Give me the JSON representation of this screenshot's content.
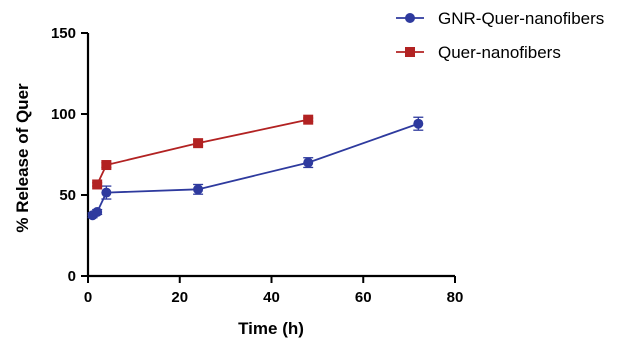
{
  "chart_data": {
    "type": "line",
    "xlabel": "Time (h)",
    "ylabel": "% Release of Quer",
    "xlim": [
      0,
      80
    ],
    "ylim": [
      0,
      150
    ],
    "x_ticks": [
      "0",
      "20",
      "40",
      "60",
      "80"
    ],
    "y_ticks": [
      "0",
      "50",
      "100",
      "150"
    ],
    "grid": false,
    "legend_position": "top-right",
    "series": [
      {
        "name": "GNR-Quer-nanofibers",
        "color": "#2e3a9e",
        "marker": "circle",
        "x": [
          1,
          2,
          4,
          24,
          48,
          72
        ],
        "y": [
          37.5,
          39.5,
          51.5,
          53.5,
          70,
          94
        ],
        "error": [
          1.5,
          1.5,
          4,
          3,
          3,
          4
        ]
      },
      {
        "name": "Quer-nanofibers",
        "color": "#b22222",
        "marker": "square",
        "x": [
          2,
          4,
          24,
          48
        ],
        "y": [
          56.5,
          68.5,
          82,
          96.5
        ],
        "error": [
          1,
          1.5,
          1.5,
          1
        ]
      }
    ]
  }
}
